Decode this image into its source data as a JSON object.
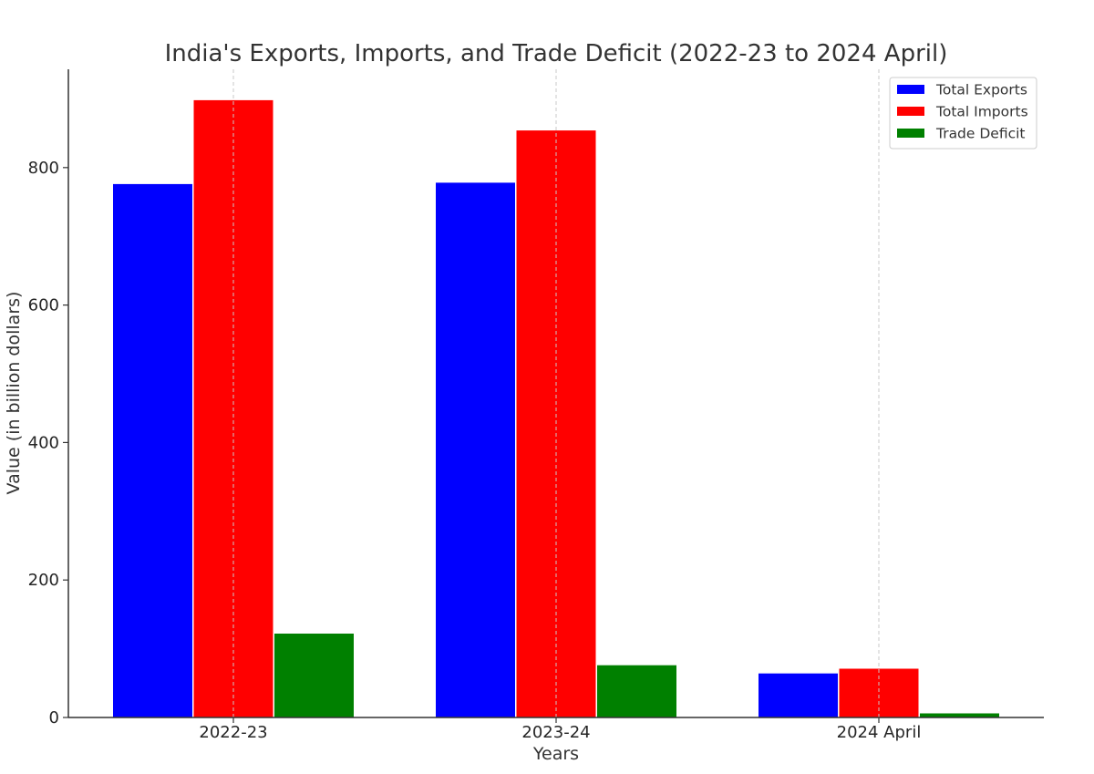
{
  "chart_data": {
    "type": "bar",
    "title": "India's Exports, Imports, and Trade Deficit (2022-23 to 2024 April)",
    "xlabel": "Years",
    "ylabel": "Value (in billion dollars)",
    "categories": [
      "2022-23",
      "2023-24",
      "2024 April"
    ],
    "series": [
      {
        "name": "Total Exports",
        "color": "#0000ff",
        "values": [
          776,
          778,
          64
        ]
      },
      {
        "name": "Total Imports",
        "color": "#ff0000",
        "values": [
          898,
          854,
          71
        ]
      },
      {
        "name": "Trade Deficit",
        "color": "#008000",
        "values": [
          122,
          76,
          6
        ]
      }
    ],
    "ylim": [
      0,
      943
    ],
    "yticks": [
      0,
      200,
      400,
      600,
      800
    ],
    "grid": "vertical dashed lines at category centers",
    "legend": "top-right"
  }
}
